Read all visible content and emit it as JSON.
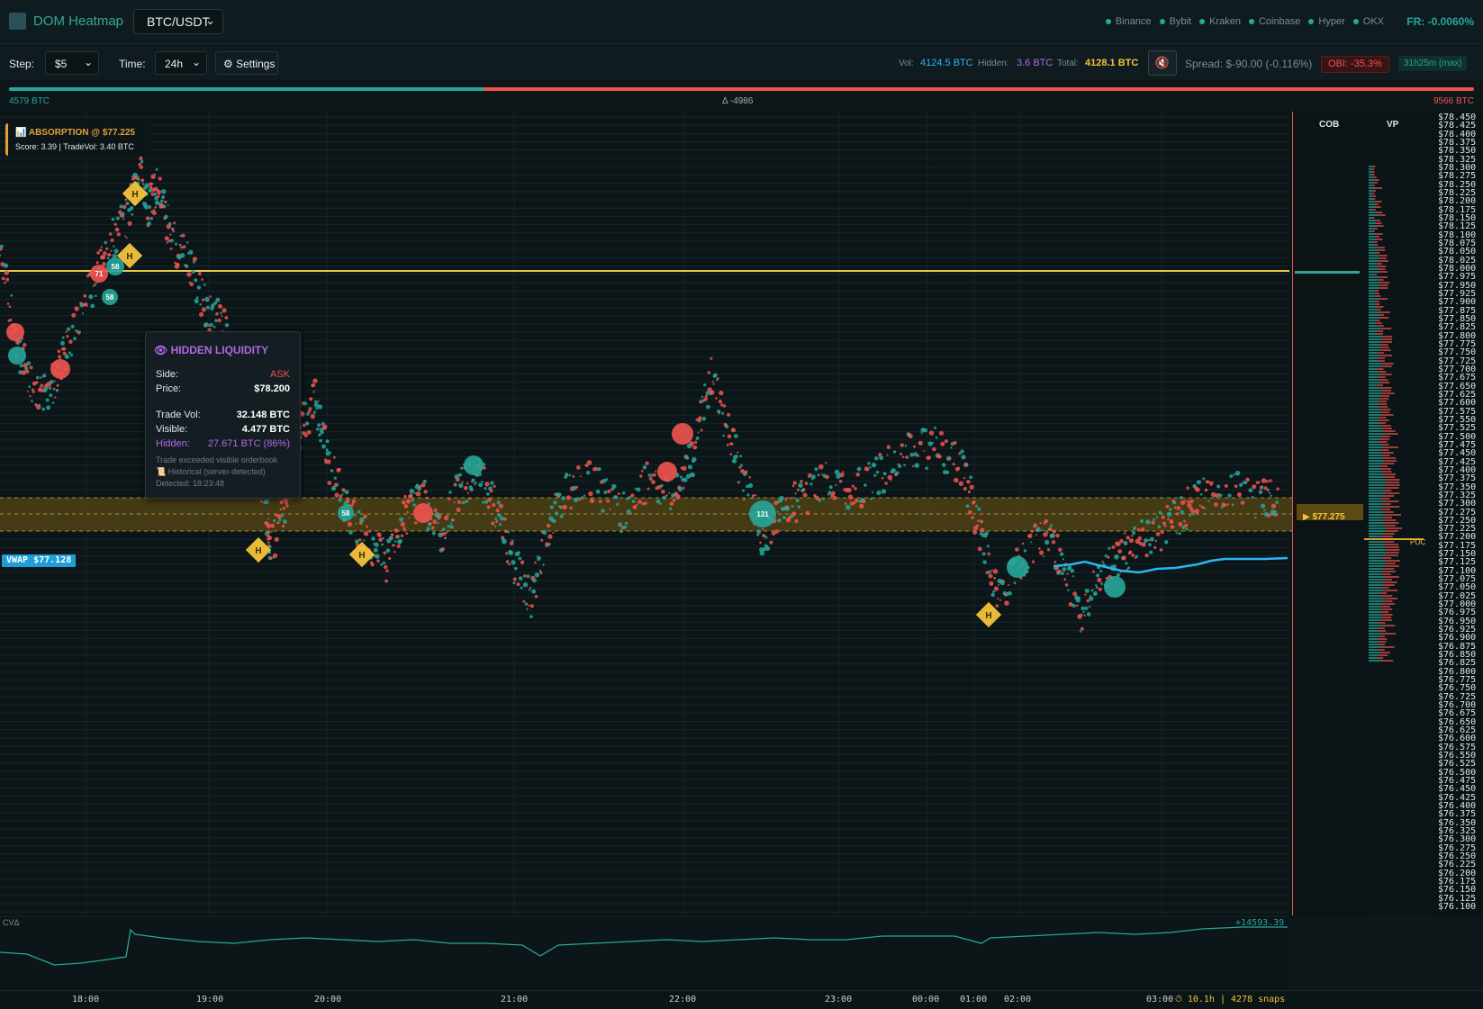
{
  "header": {
    "title": "DOM Heatmap",
    "symbol": "BTC/USDT",
    "exchanges": [
      "Binance",
      "Bybit",
      "Kraken",
      "Coinbase",
      "Hyper",
      "OKX"
    ],
    "funding_rate": "FR: -0.0060%"
  },
  "toolbar": {
    "step_label": "Step:",
    "step_value": "$5",
    "time_label": "Time:",
    "time_value": "24h",
    "settings_label": "⚙ Settings",
    "vol_label": "Vol:",
    "vol_value": "4124.5 BTC",
    "hidden_label": "Hidden:",
    "hidden_value": "3.6 BTC",
    "total_label": "Total:",
    "total_value": "4128.1 BTC",
    "spread": "Spread: $-90.00 (-0.116%)",
    "obi": "OBI: -35.3%",
    "duration": "31h25m (max)"
  },
  "imbalance": {
    "bid_label": "4579 BTC",
    "delta_label": "Δ -4986",
    "ask_label": "9566 BTC",
    "bid_fraction": 0.324
  },
  "absorption": {
    "title": "📊 ABSORPTION @ $77.225",
    "detail": "Score: 3.39 | TradeVol: 3.40 BTC"
  },
  "tooltip": {
    "title": "HIDDEN LIQUIDITY",
    "side_label": "Side:",
    "side_value": "ASK",
    "price_label": "Price:",
    "price_value": "$78.200",
    "trade_vol_label": "Trade Vol:",
    "trade_vol_value": "32.148 BTC",
    "visible_label": "Visible:",
    "visible_value": "4.477 BTC",
    "hidden_label": "Hidden:",
    "hidden_value": "27.671 BTC (86%)",
    "note": "Trade exceeded visible orderbook",
    "source": "📜 Historical (server-detected)",
    "detected": "Detected: 18:23:48"
  },
  "markers": {
    "vwap": "VWAP $77.128",
    "zone_price": "▶ $77.275",
    "poc": "POC",
    "hidden_symbol": "H",
    "bubble_labels": [
      "71",
      "58",
      "58",
      "23",
      "58",
      "131"
    ]
  },
  "panels": {
    "cob": "COB",
    "vp": "VP"
  },
  "cvd": {
    "label": "CVΔ",
    "value": "+14593.39"
  },
  "x_axis": {
    "labels": [
      "18:00",
      "19:00",
      "20:00",
      "21:00",
      "22:00",
      "23:00",
      "00:00",
      "01:00",
      "02:00",
      "03:00"
    ],
    "footer": "⏱ 10.1h | 4278 snaps"
  },
  "price_axis": {
    "labels": [
      "$78.450",
      "$78.425",
      "$78.400",
      "$78.375",
      "$78.350",
      "$78.325",
      "$78.300",
      "$78.275",
      "$78.250",
      "$78.225",
      "$78.200",
      "$78.175",
      "$78.150",
      "$78.125",
      "$78.100",
      "$78.075",
      "$78.050",
      "$78.025",
      "$78.000",
      "$77.975",
      "$77.950",
      "$77.925",
      "$77.900",
      "$77.875",
      "$77.850",
      "$77.825",
      "$77.800",
      "$77.775",
      "$77.750",
      "$77.725",
      "$77.700",
      "$77.675",
      "$77.650",
      "$77.625",
      "$77.600",
      "$77.575",
      "$77.550",
      "$77.525",
      "$77.500",
      "$77.475",
      "$77.450",
      "$77.425",
      "$77.400",
      "$77.375",
      "$77.350",
      "$77.325",
      "$77.300",
      "$77.275",
      "$77.250",
      "$77.225",
      "$77.200",
      "$77.175",
      "$77.150",
      "$77.125",
      "$77.100",
      "$77.075",
      "$77.050",
      "$77.025",
      "$77.000",
      "$76.975",
      "$76.950",
      "$76.925",
      "$76.900",
      "$76.875",
      "$76.850",
      "$76.825",
      "$76.800",
      "$76.775",
      "$76.750",
      "$76.725",
      "$76.700",
      "$76.675",
      "$76.650",
      "$76.625",
      "$76.600",
      "$76.575",
      "$76.550",
      "$76.525",
      "$76.500",
      "$76.475",
      "$76.450",
      "$76.425",
      "$76.400",
      "$76.375",
      "$76.350",
      "$76.325",
      "$76.300",
      "$76.275",
      "$76.250",
      "$76.225",
      "$76.200",
      "$76.175",
      "$76.150",
      "$76.125",
      "$76.100"
    ]
  },
  "colors": {
    "bid": "#26a69a",
    "ask": "#ef5350",
    "hidden": "#f3c33c",
    "vwap": "#29b6f6",
    "absorption": "#e0a236",
    "hidden_liquidity_title": "#b267e6"
  }
}
